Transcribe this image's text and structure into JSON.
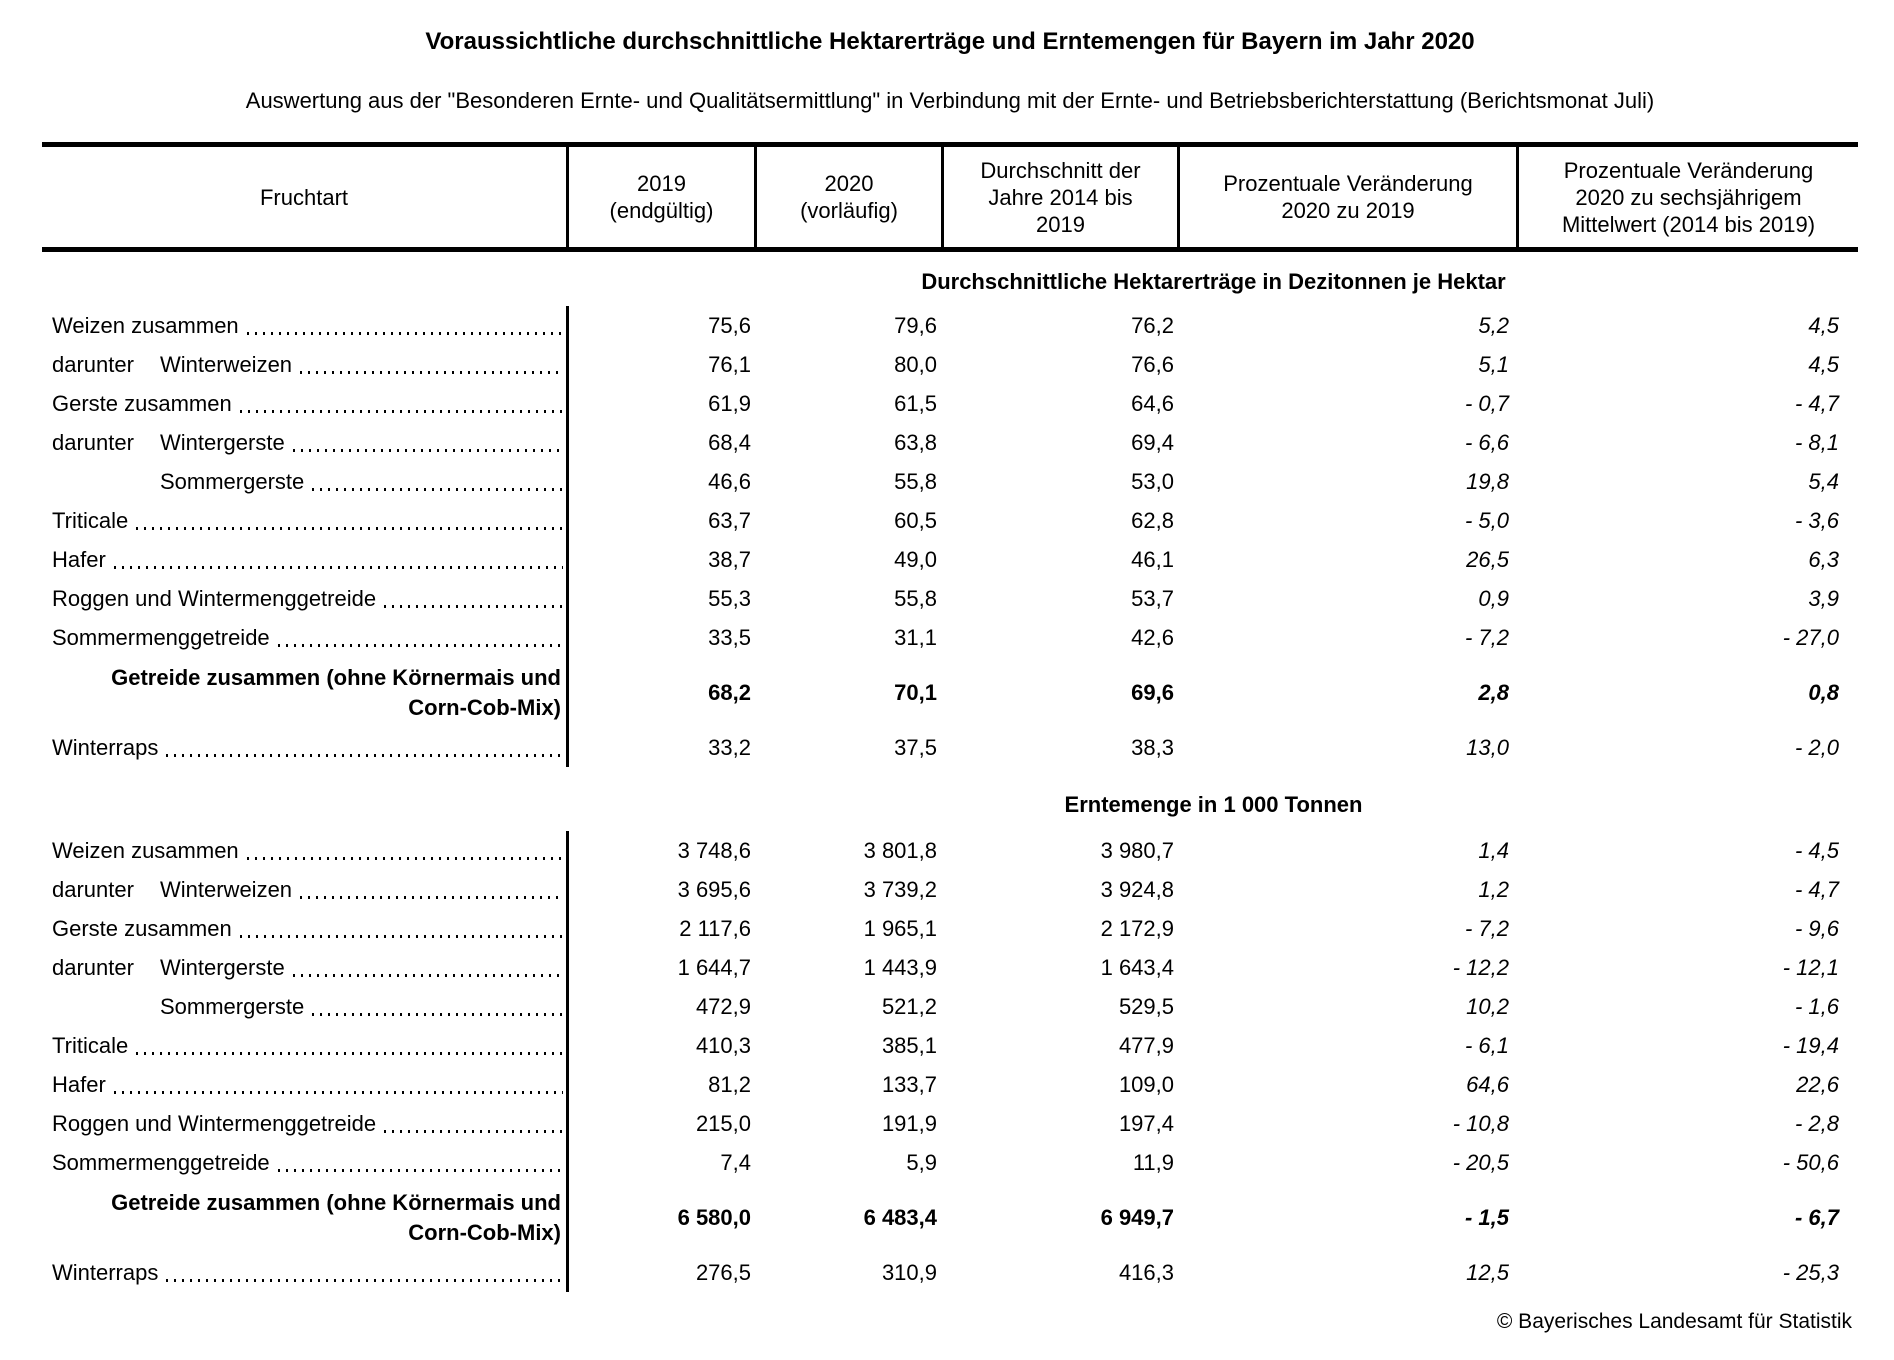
{
  "colors": {
    "background": "#ffffff",
    "text": "#000000"
  },
  "title": "Voraussichtliche durchschnittliche Hektarerträge und Erntemengen für Bayern im Jahr 2020",
  "subtitle": "Auswertung aus der \"Besonderen Ernte- und Qualitätsermittlung\" in Verbindung mit der Ernte- und Betriebsberichterstattung (Berichtsmonat Juli)",
  "table": {
    "columns": [
      "Fruchtart",
      "2019\n(endgültig)",
      "2020\n(vorläufig)",
      "Durchschnitt der\nJahre 2014 bis\n2019",
      "Prozentuale Veränderung\n2020 zu 2019",
      "Prozentuale Veränderung\n2020 zu sechsjährigem\nMittelwert (2014 bis 2019)"
    ],
    "sections": [
      {
        "heading": "Durchschnittliche Hektarerträge in Dezitonnen je Hektar",
        "rows": [
          {
            "type": "plain",
            "prefix": "",
            "label": "Weizen zusammen",
            "values": [
              "75,6",
              "79,6",
              "76,2",
              "5,2",
              "4,5"
            ]
          },
          {
            "type": "darunter",
            "prefix": "darunter",
            "label": "Winterweizen",
            "values": [
              "76,1",
              "80,0",
              "76,6",
              "5,1",
              "4,5"
            ]
          },
          {
            "type": "plain",
            "prefix": "",
            "label": "Gerste zusammen",
            "values": [
              "61,9",
              "61,5",
              "64,6",
              "- 0,7",
              "- 4,7"
            ]
          },
          {
            "type": "darunter",
            "prefix": "darunter",
            "label": "Wintergerste",
            "values": [
              "68,4",
              "63,8",
              "69,4",
              "- 6,6",
              "- 8,1"
            ]
          },
          {
            "type": "indent",
            "prefix": "",
            "label": "Sommergerste",
            "values": [
              "46,6",
              "55,8",
              "53,0",
              "19,8",
              "5,4"
            ]
          },
          {
            "type": "plain",
            "prefix": "",
            "label": "Triticale",
            "values": [
              "63,7",
              "60,5",
              "62,8",
              "- 5,0",
              "- 3,6"
            ]
          },
          {
            "type": "plain",
            "prefix": "",
            "label": "Hafer",
            "values": [
              "38,7",
              "49,0",
              "46,1",
              "26,5",
              "6,3"
            ]
          },
          {
            "type": "plain",
            "prefix": "",
            "label": "Roggen und Wintermenggetreide",
            "values": [
              "55,3",
              "55,8",
              "53,7",
              "0,9",
              "3,9"
            ]
          },
          {
            "type": "plain",
            "prefix": "",
            "label": "Sommermenggetreide",
            "values": [
              "33,5",
              "31,1",
              "42,6",
              "- 7,2",
              "- 27,0"
            ]
          },
          {
            "type": "total",
            "prefix": "",
            "label": "Getreide zusammen (ohne Körnermais und\nCorn-Cob-Mix)",
            "values": [
              "68,2",
              "70,1",
              "69,6",
              "2,8",
              "0,8"
            ]
          },
          {
            "type": "plain",
            "prefix": "",
            "label": "Winterraps",
            "values": [
              "33,2",
              "37,5",
              "38,3",
              "13,0",
              "- 2,0"
            ]
          }
        ]
      },
      {
        "heading": "Erntemenge in 1 000 Tonnen",
        "rows": [
          {
            "type": "plain",
            "prefix": "",
            "label": "Weizen zusammen",
            "values": [
              "3 748,6",
              "3 801,8",
              "3 980,7",
              "1,4",
              "- 4,5"
            ]
          },
          {
            "type": "darunter",
            "prefix": "darunter",
            "label": "Winterweizen",
            "values": [
              "3 695,6",
              "3 739,2",
              "3 924,8",
              "1,2",
              "- 4,7"
            ]
          },
          {
            "type": "plain",
            "prefix": "",
            "label": "Gerste zusammen",
            "values": [
              "2 117,6",
              "1 965,1",
              "2 172,9",
              "- 7,2",
              "- 9,6"
            ]
          },
          {
            "type": "darunter",
            "prefix": "darunter",
            "label": "Wintergerste",
            "values": [
              "1 644,7",
              "1 443,9",
              "1 643,4",
              "- 12,2",
              "- 12,1"
            ]
          },
          {
            "type": "indent",
            "prefix": "",
            "label": "Sommergerste",
            "values": [
              "472,9",
              "521,2",
              "529,5",
              "10,2",
              "- 1,6"
            ]
          },
          {
            "type": "plain",
            "prefix": "",
            "label": "Triticale",
            "values": [
              "410,3",
              "385,1",
              "477,9",
              "- 6,1",
              "- 19,4"
            ]
          },
          {
            "type": "plain",
            "prefix": "",
            "label": "Hafer",
            "values": [
              "81,2",
              "133,7",
              "109,0",
              "64,6",
              "22,6"
            ]
          },
          {
            "type": "plain",
            "prefix": "",
            "label": "Roggen und Wintermenggetreide",
            "values": [
              "215,0",
              "191,9",
              "197,4",
              "- 10,8",
              "- 2,8"
            ]
          },
          {
            "type": "plain",
            "prefix": "",
            "label": "Sommermenggetreide",
            "values": [
              "7,4",
              "5,9",
              "11,9",
              "- 20,5",
              "- 50,6"
            ]
          },
          {
            "type": "total",
            "prefix": "",
            "label": "Getreide zusammen (ohne Körnermais und\nCorn-Cob-Mix)",
            "values": [
              "6 580,0",
              "6 483,4",
              "6 949,7",
              "- 1,5",
              "- 6,7"
            ]
          },
          {
            "type": "plain",
            "prefix": "",
            "label": "Winterraps",
            "values": [
              "276,5",
              "310,9",
              "416,3",
              "12,5",
              "- 25,3"
            ]
          }
        ]
      }
    ]
  },
  "footer": "© Bayerisches Landesamt für Statistik"
}
